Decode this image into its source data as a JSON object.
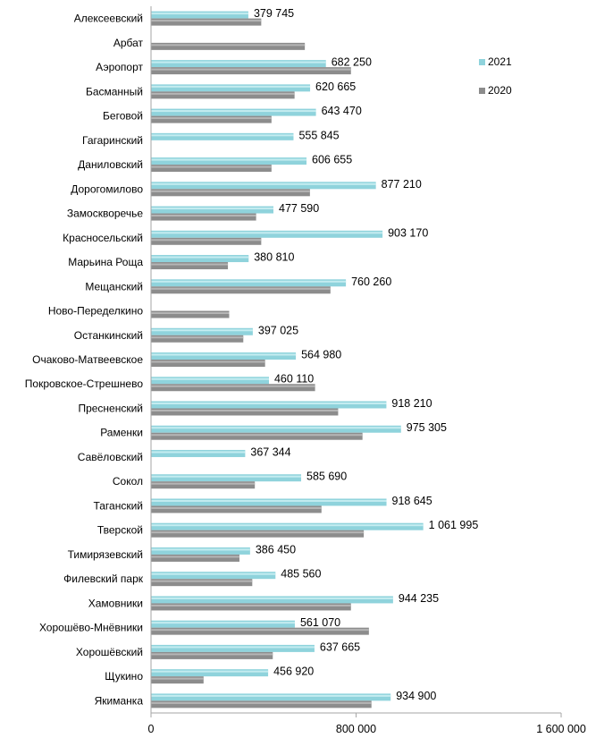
{
  "chart_data": {
    "type": "bar",
    "orientation": "horizontal",
    "categories": [
      "Алексеевский",
      "Арбат",
      "Аэропорт",
      "Басманный",
      "Беговой",
      "Гагаринский",
      "Даниловский",
      "Дорогомилово",
      "Замоскворечье",
      "Красносельский",
      "Марьина Роща",
      "Мещанский",
      "Ново-Переделкино",
      "Останкинский",
      "Очаково-Матвеевское",
      "Покровское-Стрешнево",
      "Пресненский",
      "Раменки",
      "Савёловский",
      "Сокол",
      "Таганский",
      "Тверской",
      "Тимирязевский",
      "Филевский парк",
      "Хамовники",
      "Хорошёво-Мнёвники",
      "Хорошёвский",
      "Щукино",
      "Якиманка"
    ],
    "series": [
      {
        "name": "2021",
        "color": "#8fd3dc",
        "values": [
          379745,
          null,
          682250,
          620665,
          643470,
          555845,
          606655,
          877210,
          477590,
          903170,
          380810,
          760260,
          null,
          397025,
          564980,
          460110,
          918210,
          975305,
          367344,
          585690,
          918645,
          1061995,
          386450,
          485560,
          944235,
          561070,
          637665,
          456920,
          934900
        ],
        "labels": [
          "379 745",
          "",
          "682 250",
          "620 665",
          "643 470",
          "555 845",
          "606 655",
          "877 210",
          "477 590",
          "903 170",
          "380 810",
          "760 260",
          "",
          "397 025",
          "564 980",
          "460 110",
          "918 210",
          "975 305",
          "367 344",
          "585 690",
          "918 645",
          "1 061 995",
          "386 450",
          "485 560",
          "944 235",
          "561 070",
          "637 665",
          "456 920",
          "934 900"
        ]
      },
      {
        "name": "2020",
        "color": "#8c8c8c",
        "values": [
          430000,
          600000,
          780000,
          560000,
          470000,
          null,
          470000,
          620000,
          410000,
          430000,
          300000,
          700000,
          305000,
          360000,
          445000,
          640000,
          730000,
          825000,
          null,
          405000,
          665000,
          830000,
          345000,
          395000,
          780000,
          850000,
          475000,
          205000,
          860000
        ]
      }
    ],
    "xlim": [
      0,
      1600000
    ],
    "xticks": [
      "0",
      "800 000",
      "1 600 000"
    ],
    "legend": {
      "position": "right",
      "entries": [
        "2021",
        "2020"
      ]
    },
    "grid": false
  }
}
